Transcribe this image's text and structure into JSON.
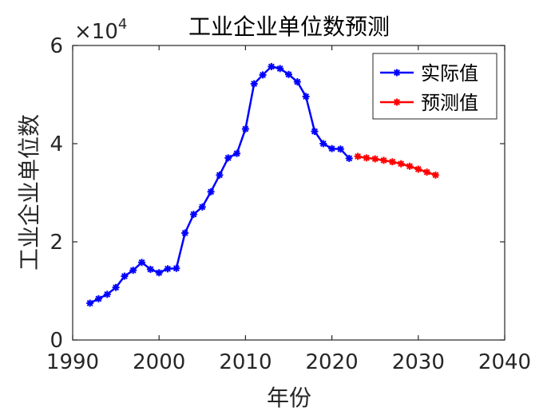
{
  "chart_data": {
    "type": "line",
    "title": "工业企业单位数预测",
    "xlabel": "年份",
    "ylabel": "工业企业单位数",
    "xlim": [
      1990,
      2040
    ],
    "ylim": [
      0,
      60000
    ],
    "xticks": [
      "1990",
      "2000",
      "2010",
      "2020",
      "2030",
      "2040"
    ],
    "xtick_values": [
      1990,
      2000,
      2010,
      2020,
      2030,
      2040
    ],
    "yticks": [
      "0",
      "2",
      "4",
      "6"
    ],
    "ytick_values": [
      0,
      20000,
      40000,
      60000
    ],
    "y_exponent_label": "×10",
    "y_exponent_power": "4",
    "grid": false,
    "legend_position": "top-right",
    "series": [
      {
        "name": "实际值",
        "color": "#0000ff",
        "marker": "asterisk",
        "x": [
          1992,
          1993,
          1994,
          1995,
          1996,
          1997,
          1998,
          1999,
          2000,
          2001,
          2002,
          2003,
          2004,
          2005,
          2006,
          2007,
          2008,
          2009,
          2010,
          2011,
          2012,
          2013,
          2014,
          2015,
          2016,
          2017,
          2018,
          2019,
          2020,
          2021,
          2022
        ],
        "y": [
          7500,
          8400,
          9300,
          10700,
          13000,
          14200,
          15800,
          14400,
          13700,
          14500,
          14600,
          21800,
          25600,
          27100,
          30200,
          33600,
          37100,
          38000,
          43000,
          52200,
          54000,
          55700,
          55300,
          54100,
          52600,
          49600,
          42500,
          40000,
          39000,
          38900,
          37000
        ]
      },
      {
        "name": "预测值",
        "color": "#ff0000",
        "marker": "asterisk",
        "x": [
          2023,
          2024,
          2025,
          2026,
          2027,
          2028,
          2029,
          2030,
          2031,
          2032
        ],
        "y": [
          37400,
          37100,
          36900,
          36600,
          36300,
          35900,
          35400,
          34800,
          34200,
          33600
        ]
      }
    ]
  }
}
